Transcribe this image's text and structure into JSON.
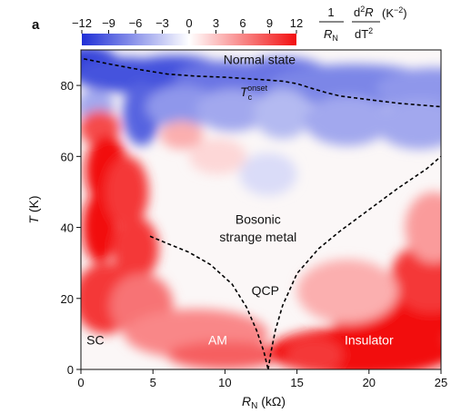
{
  "chart_data": {
    "type": "heatmap",
    "panel_label": "a",
    "xlabel_main": "R",
    "xlabel_sub": "N",
    "xlabel_unit": " (kΩ)",
    "ylabel_main": "T",
    "ylabel_unit": " (K)",
    "xlim": [
      0,
      25
    ],
    "ylim": [
      0,
      90
    ],
    "x_ticks": [
      0,
      5,
      10,
      15,
      20,
      25
    ],
    "x_tick_labels": [
      "0",
      "5",
      "10",
      "15",
      "20",
      "25"
    ],
    "y_ticks": [
      0,
      20,
      40,
      60,
      80
    ],
    "y_tick_labels": [
      "0",
      "20",
      "40",
      "60",
      "80"
    ],
    "colorbar": {
      "range": [
        -12,
        12
      ],
      "ticks": [
        -12,
        -9,
        -6,
        -3,
        0,
        3,
        6,
        9,
        12
      ],
      "tick_labels": [
        "−12",
        "−9",
        "−6",
        "−3",
        "0",
        "3",
        "6",
        "9",
        "12"
      ],
      "colors": [
        "#1f2fd6",
        "#ffffff",
        "#f20f10"
      ]
    },
    "colorbar_formula": {
      "numerator": "1",
      "denominator_main": "R",
      "denominator_sub": "N",
      "d2_numerator": "d",
      "d2_numerator_sup": "2",
      "d2_numerator_tail": "R",
      "d2_denominator": "dT",
      "d2_denominator_sup": "2",
      "unit_open": "(K",
      "unit_sup": "−2",
      "unit_close": ")"
    },
    "regions": [
      {
        "label": "Normal state",
        "x": 12.4,
        "y": 86
      },
      {
        "label_main": "T",
        "label_sub": "c",
        "label_sup": "onset",
        "x": 12.0,
        "y": 77
      },
      {
        "label": "Bosonic",
        "x": 12.3,
        "y": 41
      },
      {
        "label": "strange metal",
        "x": 12.3,
        "y": 36
      },
      {
        "label": "QCP",
        "x": 12.8,
        "y": 21
      },
      {
        "label": "SC",
        "x": 1.0,
        "y": 7
      },
      {
        "label": "AM",
        "x": 9.5,
        "y": 7
      },
      {
        "label": "Insulator",
        "x": 20.0,
        "y": 7
      }
    ],
    "series": [
      {
        "role": "T_c^onset boundary",
        "points": [
          [
            0.2,
            87.5
          ],
          [
            2,
            86
          ],
          [
            4,
            84.5
          ],
          [
            6,
            83.2
          ],
          [
            8,
            82.6
          ],
          [
            10,
            82.3
          ],
          [
            12,
            81.8
          ],
          [
            14,
            81.2
          ],
          [
            15,
            80.5
          ],
          [
            16,
            79.2
          ],
          [
            17,
            78
          ],
          [
            18,
            77
          ],
          [
            20,
            76
          ],
          [
            22,
            75
          ],
          [
            25,
            74
          ]
        ]
      },
      {
        "role": "left crossover",
        "points": [
          [
            4.8,
            37.5
          ],
          [
            6,
            35.5
          ],
          [
            7.5,
            33
          ],
          [
            9,
            29.5
          ],
          [
            10.5,
            24
          ],
          [
            11.5,
            17.5
          ],
          [
            12.2,
            11
          ],
          [
            12.7,
            5
          ],
          [
            13.0,
            0
          ]
        ]
      },
      {
        "role": "right crossover",
        "points": [
          [
            13.0,
            0
          ],
          [
            13.2,
            5
          ],
          [
            13.5,
            11
          ],
          [
            14,
            18
          ],
          [
            15,
            27
          ],
          [
            16.5,
            34
          ],
          [
            18,
            39
          ],
          [
            20,
            45
          ],
          [
            22,
            51
          ],
          [
            24,
            56.5
          ],
          [
            25,
            60
          ]
        ]
      }
    ],
    "blobs": [
      {
        "x": 0.5,
        "y": 86,
        "rx": 2.2,
        "ry": 5,
        "v": -11
      },
      {
        "x": 3,
        "y": 83,
        "rx": 3.5,
        "ry": 5,
        "v": -10
      },
      {
        "x": 6.5,
        "y": 83,
        "rx": 3.8,
        "ry": 5.5,
        "v": -10
      },
      {
        "x": 10,
        "y": 82,
        "rx": 3.5,
        "ry": 5,
        "v": -8
      },
      {
        "x": 14,
        "y": 82,
        "rx": 3.5,
        "ry": 6,
        "v": -8
      },
      {
        "x": 19,
        "y": 80,
        "rx": 6,
        "ry": 6,
        "v": -7
      },
      {
        "x": 24.5,
        "y": 79,
        "rx": 4,
        "ry": 6,
        "v": -6
      },
      {
        "x": 4.2,
        "y": 72,
        "rx": 1.3,
        "ry": 9,
        "v": -9
      },
      {
        "x": 1.0,
        "y": 74,
        "rx": 1.3,
        "ry": 5,
        "v": -5
      },
      {
        "x": 7,
        "y": 74,
        "rx": 2.5,
        "ry": 6,
        "v": -6
      },
      {
        "x": 10.5,
        "y": 73,
        "rx": 2.5,
        "ry": 6,
        "v": -5
      },
      {
        "x": 14,
        "y": 72,
        "rx": 2,
        "ry": 7,
        "v": -4
      },
      {
        "x": 18.5,
        "y": 70,
        "rx": 3,
        "ry": 7,
        "v": -5
      },
      {
        "x": 23.5,
        "y": 69,
        "rx": 3,
        "ry": 7,
        "v": -5
      },
      {
        "x": 1.3,
        "y": 68,
        "rx": 1.4,
        "ry": 5,
        "v": 9
      },
      {
        "x": 1.8,
        "y": 56,
        "rx": 1.5,
        "ry": 10,
        "v": 12
      },
      {
        "x": 1.3,
        "y": 40,
        "rx": 1.2,
        "ry": 10,
        "v": 12
      },
      {
        "x": 3.2,
        "y": 50,
        "rx": 1.5,
        "ry": 10,
        "v": 10
      },
      {
        "x": 3.8,
        "y": 34,
        "rx": 1.6,
        "ry": 9,
        "v": 10
      },
      {
        "x": 1.7,
        "y": 20,
        "rx": 2.2,
        "ry": 10,
        "v": 10
      },
      {
        "x": 4.2,
        "y": 18,
        "rx": 2.2,
        "ry": 9,
        "v": 7
      },
      {
        "x": 8,
        "y": 10,
        "rx": 5,
        "ry": 7,
        "v": 6
      },
      {
        "x": 10,
        "y": 4,
        "rx": 4,
        "ry": 4,
        "v": 8
      },
      {
        "x": 7,
        "y": 66,
        "rx": 1.5,
        "ry": 4,
        "v": 4
      },
      {
        "x": 19.5,
        "y": 5,
        "rx": 6.5,
        "ry": 7,
        "v": 12
      },
      {
        "x": 22,
        "y": 14,
        "rx": 4.5,
        "ry": 8,
        "v": 12
      },
      {
        "x": 24.3,
        "y": 26,
        "rx": 2.8,
        "ry": 10,
        "v": 10
      },
      {
        "x": 24.5,
        "y": 40,
        "rx": 2,
        "ry": 10,
        "v": 5
      },
      {
        "x": 16.2,
        "y": 4,
        "rx": 2,
        "ry": 5,
        "v": 10
      },
      {
        "x": 18.5,
        "y": 22,
        "rx": 3.5,
        "ry": 9,
        "v": 4
      },
      {
        "x": 13,
        "y": 55,
        "rx": 2,
        "ry": 6,
        "v": -2
      },
      {
        "x": 9.5,
        "y": 60,
        "rx": 2,
        "ry": 5,
        "v": 2
      }
    ]
  }
}
